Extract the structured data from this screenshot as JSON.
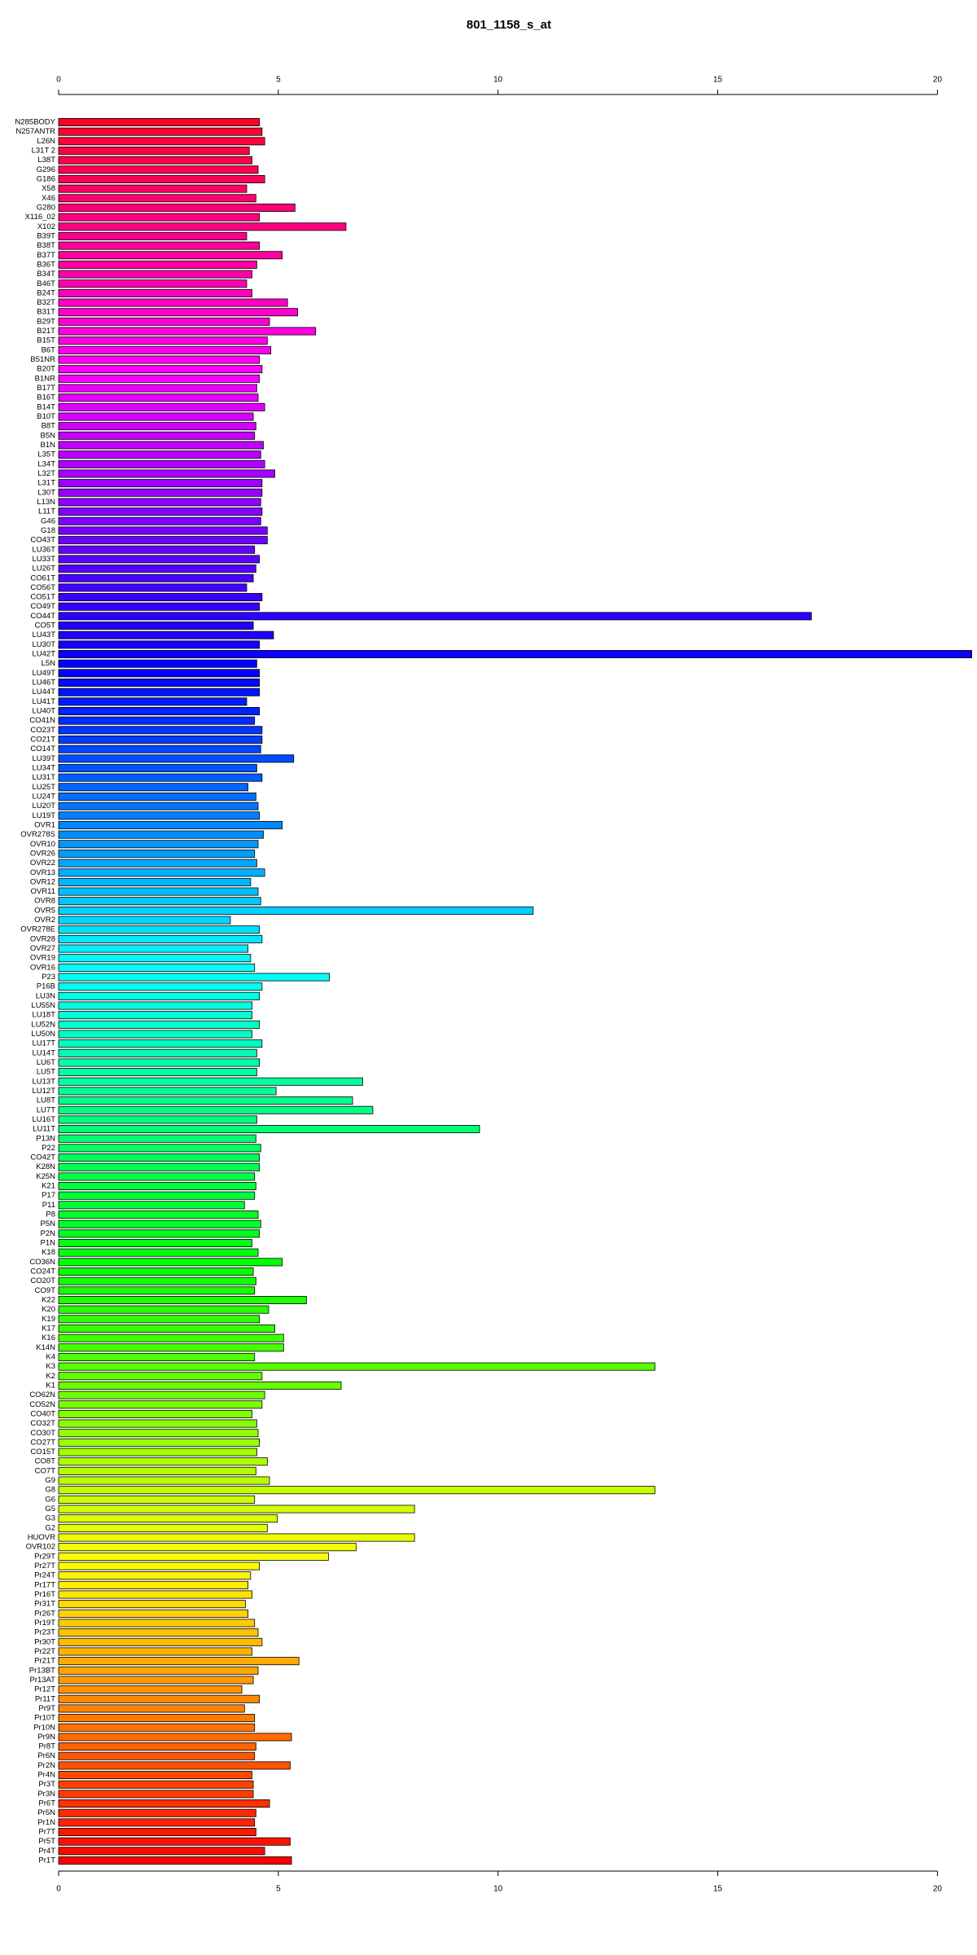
{
  "chart_data": {
    "type": "barh",
    "title": "801_1158_s_at",
    "categories": [
      "N285BODY",
      "N257ANTR",
      "L26N",
      "L31T 2",
      "L38T",
      "G296",
      "G186",
      "X58",
      "X46",
      "G280",
      "X116_02",
      "X102",
      "B39T",
      "B38T",
      "B37T",
      "B36T",
      "B34T",
      "B46T",
      "B24T",
      "B32T",
      "B31T",
      "B29T",
      "B21T",
      "B15T",
      "B6T",
      "B51NR",
      "B20T",
      "B1NR",
      "B17T",
      "B16T",
      "B14T",
      "B10T",
      "B8T",
      "B5N",
      "B1N",
      "L35T",
      "L34T",
      "L32T",
      "L31T",
      "L30T",
      "L13N",
      "L11T",
      "G46",
      "G18",
      "CO43T",
      "LU36T",
      "LU33T",
      "LU26T",
      "CO61T",
      "CO56T",
      "CO51T",
      "CO49T",
      "CO44T",
      "CO5T",
      "LU43T",
      "LU30T",
      "LU42T",
      "L5N",
      "LU49T",
      "LU46T",
      "LU44T",
      "LU41T",
      "LU40T",
      "CO41N",
      "CO23T",
      "CO21T",
      "CO14T",
      "LU39T",
      "LU34T",
      "LU31T",
      "LU25T",
      "LU24T",
      "LU20T",
      "LU19T",
      "OVR1",
      "OVR278S",
      "OVR10",
      "OVR26",
      "OVR22",
      "OVR13",
      "OVR12",
      "OVR11",
      "OVR8",
      "OVR5",
      "OVR2",
      "OVR278E",
      "OVR28",
      "OVR27",
      "OVR19",
      "OVR16",
      "P23",
      "P16B",
      "LU3N",
      "LU55N",
      "LU18T",
      "LU52N",
      "LU50N",
      "LU17T",
      "LU14T",
      "LU6T",
      "LU5T",
      "LU13T",
      "LU12T",
      "LU8T",
      "LU7T",
      "LU16T",
      "LU11T",
      "P13N",
      "P22",
      "CO42T",
      "K28N",
      "K25N",
      "K21",
      "P17",
      "P11",
      "P8",
      "P5N",
      "P2N",
      "P1N",
      "K18",
      "CO36N",
      "CO24T",
      "CO20T",
      "CO9T",
      "K22",
      "K20",
      "K19",
      "K17",
      "K16",
      "K14N",
      "K4",
      "K3",
      "K2",
      "K1",
      "CO62N",
      "CO52N",
      "CO40T",
      "CO32T",
      "CO30T",
      "CO27T",
      "CO15T",
      "CO8T",
      "CO7T",
      "G9",
      "G8",
      "G6",
      "G5",
      "G3",
      "G2",
      "HUOVR",
      "OVR102",
      "Pr29T",
      "Pr27T",
      "Pr24T",
      "Pr17T",
      "Pr16T",
      "Pr31T",
      "Pr26T",
      "Pr19T",
      "Pr23T",
      "Pr30T",
      "Pr22T",
      "Pr21T",
      "Pr13BT",
      "Pr13AT",
      "Pr12T",
      "Pr11T",
      "Pr9T",
      "Pr10T",
      "Pr10N",
      "Pr9N",
      "Pr8T",
      "Pr6N",
      "Pr2N",
      "Pr4N",
      "Pr3T",
      "Pr3N",
      "Pr6T",
      "Pr5N",
      "Pr1N",
      "Pr7T",
      "Pr5T",
      "Pr4T",
      "Pr1T"
    ],
    "values": [
      4.57,
      4.63,
      4.69,
      4.34,
      4.4,
      4.54,
      4.69,
      4.28,
      4.49,
      5.38,
      4.57,
      6.54,
      4.28,
      4.57,
      5.09,
      4.51,
      4.4,
      4.28,
      4.4,
      5.21,
      5.44,
      4.8,
      5.85,
      4.75,
      4.83,
      4.57,
      4.63,
      4.57,
      4.51,
      4.54,
      4.69,
      4.43,
      4.49,
      4.46,
      4.66,
      4.6,
      4.69,
      4.92,
      4.63,
      4.63,
      4.6,
      4.63,
      4.6,
      4.75,
      4.75,
      4.46,
      4.57,
      4.49,
      4.43,
      4.28,
      4.63,
      4.57,
      17.13,
      4.43,
      4.89,
      4.57,
      20.78,
      4.51,
      4.57,
      4.57,
      4.57,
      4.28,
      4.57,
      4.46,
      4.63,
      4.63,
      4.6,
      5.35,
      4.51,
      4.63,
      4.31,
      4.49,
      4.54,
      4.57,
      5.09,
      4.66,
      4.54,
      4.46,
      4.51,
      4.69,
      4.37,
      4.54,
      4.6,
      10.8,
      3.91,
      4.57,
      4.63,
      4.31,
      4.37,
      4.46,
      6.16,
      4.63,
      4.57,
      4.4,
      4.4,
      4.57,
      4.4,
      4.63,
      4.51,
      4.57,
      4.51,
      6.92,
      4.95,
      6.69,
      7.15,
      4.51,
      9.58,
      4.49,
      4.6,
      4.57,
      4.57,
      4.46,
      4.49,
      4.46,
      4.23,
      4.54,
      4.6,
      4.57,
      4.4,
      4.54,
      5.09,
      4.43,
      4.49,
      4.46,
      5.64,
      4.78,
      4.57,
      4.92,
      5.12,
      5.12,
      4.46,
      13.57,
      4.63,
      6.43,
      4.69,
      4.63,
      4.4,
      4.51,
      4.54,
      4.57,
      4.51,
      4.75,
      4.49,
      4.8,
      13.57,
      4.46,
      8.1,
      4.98,
      4.75,
      8.1,
      6.77,
      6.14,
      4.57,
      4.37,
      4.31,
      4.4,
      4.25,
      4.31,
      4.46,
      4.54,
      4.63,
      4.4,
      5.47,
      4.54,
      4.43,
      4.17,
      4.57,
      4.23,
      4.46,
      4.46,
      5.3,
      4.49,
      4.46,
      5.27,
      4.4,
      4.43,
      4.43,
      4.8,
      4.49,
      4.46,
      4.49,
      5.27,
      4.69,
      5.3
    ],
    "color_scale": [
      "hsl(350, 100%, 50%)",
      "hsl(0, 100%, 50%)"
    ],
    "xlim": [
      0,
      20.8
    ],
    "xticks": [
      0,
      5,
      10,
      15,
      20
    ]
  }
}
